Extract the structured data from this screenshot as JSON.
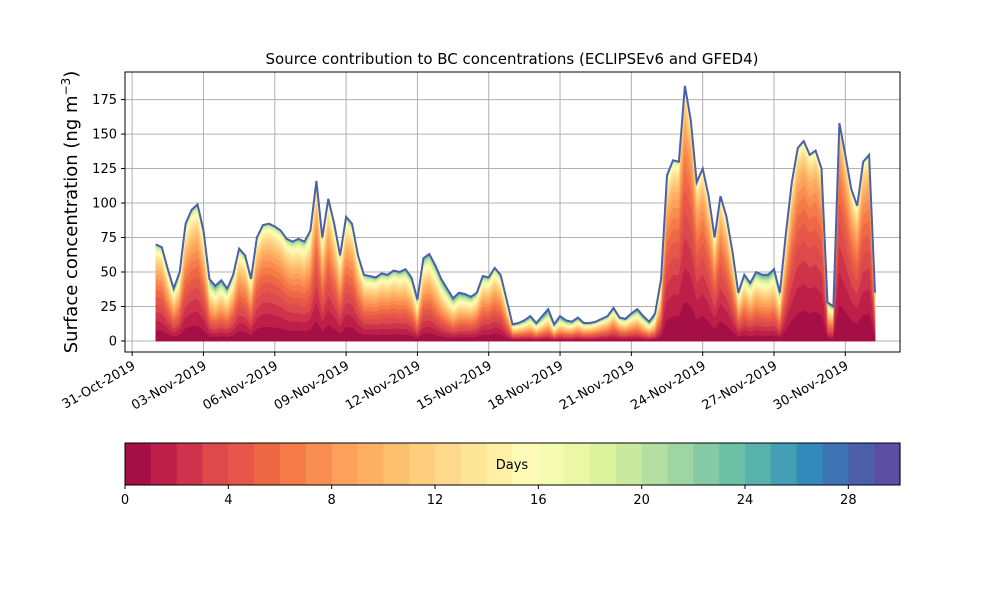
{
  "chart_data": {
    "type": "area",
    "stacked": true,
    "title": "Source contribution to BC concentrations (ECLIPSEv6 and GFED4)",
    "ylabel_main": "Surface concentration (ng m",
    "ylabel_sup": "−3",
    "ylabel_close": ")",
    "ylim": [
      -8,
      195
    ],
    "yticks": [
      0,
      25,
      50,
      75,
      100,
      125,
      150,
      175
    ],
    "ytick_labels": [
      "0",
      "25",
      "50",
      "75",
      "100",
      "125",
      "150",
      "175"
    ],
    "xlim_days": [
      -0.3,
      32.3
    ],
    "xticks_days": [
      0,
      3,
      6,
      9,
      12,
      15,
      18,
      21,
      24,
      27,
      30
    ],
    "xtick_labels": [
      "31-Oct-2019",
      "03-Nov-2019",
      "06-Nov-2019",
      "09-Nov-2019",
      "12-Nov-2019",
      "15-Nov-2019",
      "18-Nov-2019",
      "21-Nov-2019",
      "24-Nov-2019",
      "27-Nov-2019",
      "30-Nov-2019"
    ],
    "grid": true,
    "x_days": [
      1.0,
      1.25,
      1.5,
      1.75,
      2.0,
      2.25,
      2.5,
      2.75,
      3.0,
      3.25,
      3.5,
      3.75,
      4.0,
      4.25,
      4.5,
      4.75,
      5.0,
      5.25,
      5.5,
      5.75,
      6.0,
      6.25,
      6.5,
      6.75,
      7.0,
      7.25,
      7.5,
      7.75,
      8.0,
      8.25,
      8.5,
      8.75,
      9.0,
      9.25,
      9.5,
      9.75,
      10.0,
      10.25,
      10.5,
      10.75,
      11.0,
      11.25,
      11.5,
      11.75,
      12.0,
      12.25,
      12.5,
      12.75,
      13.0,
      13.25,
      13.5,
      13.75,
      14.0,
      14.25,
      14.5,
      14.75,
      15.0,
      15.25,
      15.5,
      15.75,
      16.0,
      16.25,
      16.5,
      16.75,
      17.0,
      17.25,
      17.5,
      17.75,
      18.0,
      18.25,
      18.5,
      18.75,
      19.0,
      19.25,
      19.5,
      19.75,
      20.0,
      20.25,
      20.5,
      20.75,
      21.0,
      21.25,
      21.5,
      21.75,
      22.0,
      22.25,
      22.5,
      22.75,
      23.0,
      23.25,
      23.5,
      23.75,
      24.0,
      24.25,
      24.5,
      24.75,
      25.0,
      25.25,
      25.5,
      25.75,
      26.0,
      26.25,
      26.5,
      26.75,
      27.0,
      27.25,
      27.5,
      27.75,
      28.0,
      28.25,
      28.5,
      28.75,
      29.0,
      29.25,
      29.5,
      29.75,
      30.0,
      30.25,
      30.5,
      30.75,
      31.0,
      31.25
    ],
    "total": [
      70,
      68,
      52,
      38,
      50,
      85,
      95,
      99,
      80,
      45,
      40,
      44,
      38,
      48,
      67,
      62,
      45,
      75,
      84,
      85,
      83,
      80,
      74,
      72,
      74,
      72,
      80,
      116,
      75,
      103,
      85,
      62,
      90,
      85,
      62,
      48,
      47,
      46,
      49,
      48,
      51,
      50,
      52,
      46,
      30,
      60,
      63,
      55,
      45,
      38,
      31,
      35,
      34,
      32,
      35,
      47,
      46,
      53,
      48,
      30,
      12,
      13,
      15,
      18,
      13,
      18,
      23,
      12,
      18,
      15,
      14,
      17,
      13,
      13,
      14,
      16,
      18,
      24,
      17,
      16,
      20,
      23,
      18,
      14,
      20,
      45,
      120,
      131,
      130,
      185,
      160,
      115,
      125,
      105,
      75,
      105,
      90,
      65,
      35,
      48,
      42,
      50,
      48,
      48,
      52,
      35,
      78,
      115,
      140,
      145,
      135,
      138,
      125,
      28,
      25,
      158,
      135,
      110,
      98,
      130,
      135,
      35,
      30,
      28
    ],
    "colorbar": {
      "label": "Days",
      "ticks": [
        0,
        4,
        8,
        12,
        16,
        20,
        24,
        28
      ],
      "tick_labels": [
        "0",
        "4",
        "8",
        "12",
        "16",
        "20",
        "24",
        "28"
      ],
      "range": [
        0,
        30
      ],
      "colors": [
        "#a50f45",
        "#be1f48",
        "#cf334b",
        "#dd4a4c",
        "#e65749",
        "#ef6845",
        "#f57b48",
        "#f98e52",
        "#fca05c",
        "#fdb062",
        "#fdc06f",
        "#fecd7d",
        "#fed98b",
        "#fee699",
        "#fff0a6",
        "#fefbb8",
        "#f6fbb2",
        "#ebf7a5",
        "#dcf19b",
        "#c9e99e",
        "#b4dfa2",
        "#9dd5a4",
        "#84cba5",
        "#6cc0a5",
        "#56b2ab",
        "#449eb4",
        "#3489bb",
        "#3d74b3",
        "#4c60aa",
        "#5b4ea3"
      ]
    }
  }
}
